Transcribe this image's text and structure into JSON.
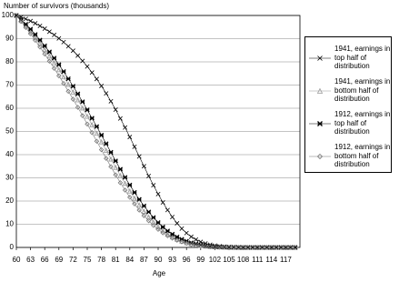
{
  "chart_data": {
    "type": "line",
    "y_label": "Number of survivors (thousands)",
    "x_label": "Age",
    "x": [
      60,
      61,
      62,
      63,
      64,
      65,
      66,
      67,
      68,
      69,
      70,
      71,
      72,
      73,
      74,
      75,
      76,
      77,
      78,
      79,
      80,
      81,
      82,
      83,
      84,
      85,
      86,
      87,
      88,
      89,
      90,
      91,
      92,
      93,
      94,
      95,
      96,
      97,
      98,
      99,
      100,
      101,
      102,
      103,
      104,
      105,
      106,
      107,
      108,
      109,
      110,
      111,
      112,
      113,
      114,
      115,
      116,
      117,
      118,
      119
    ],
    "xlim": [
      60,
      120
    ],
    "xticks": [
      60,
      63,
      66,
      69,
      72,
      75,
      78,
      81,
      84,
      87,
      90,
      93,
      96,
      99,
      102,
      105,
      108,
      111,
      114,
      117
    ],
    "ylim": [
      0,
      100
    ],
    "yticks": [
      0,
      10,
      20,
      30,
      40,
      50,
      60,
      70,
      80,
      90,
      100
    ],
    "grid": true,
    "series": [
      {
        "name": "1941, earnings in top half of distribution",
        "color": "#000000",
        "marker": "x",
        "values": [
          100,
          99.3,
          98.5,
          97.6,
          96.6,
          95.5,
          94.3,
          93,
          91.6,
          90.1,
          88.5,
          86.7,
          84.8,
          82.7,
          80.4,
          78,
          75.4,
          72.6,
          69.6,
          66.4,
          63,
          59.4,
          55.6,
          51.7,
          47.6,
          43.4,
          39.2,
          35,
          30.8,
          26.8,
          23,
          19.4,
          16.1,
          13.1,
          10.4,
          8.1,
          6.2,
          4.6,
          3.4,
          2.4,
          1.7,
          1.2,
          0.8,
          0.5,
          0.3,
          0.2,
          0.1,
          0.1,
          0,
          0,
          0,
          0,
          0,
          0,
          0,
          0,
          0,
          0,
          0,
          0
        ]
      },
      {
        "name": "1941, earnings in bottom half of distribution",
        "color": "#999999",
        "marker": "triangle",
        "values": [
          100,
          97.8,
          95.5,
          93.1,
          90.6,
          88,
          85.3,
          82.5,
          79.6,
          76.6,
          73.5,
          70.3,
          67,
          63.6,
          60.1,
          56.5,
          52.9,
          49.2,
          45.5,
          41.8,
          38.1,
          34.5,
          31,
          27.6,
          24.3,
          21.2,
          18.3,
          15.6,
          13.1,
          10.9,
          8.9,
          7.2,
          5.7,
          4.5,
          3.5,
          2.7,
          2,
          1.5,
          1.1,
          0.8,
          0.6,
          0.4,
          0.3,
          0.2,
          0.1,
          0.1,
          0,
          0,
          0,
          0,
          0,
          0,
          0,
          0,
          0,
          0,
          0,
          0,
          0,
          0
        ]
      },
      {
        "name": "1912, earnings in top half of distribution",
        "color": "#000000",
        "marker": "star",
        "values": [
          100,
          98.2,
          96.2,
          94.1,
          91.8,
          89.4,
          86.9,
          84.3,
          81.6,
          78.8,
          75.8,
          72.7,
          69.5,
          66.2,
          62.8,
          59.3,
          55.7,
          52.1,
          48.4,
          44.7,
          41,
          37.3,
          33.7,
          30.2,
          26.9,
          23.7,
          20.7,
          17.9,
          15.3,
          12.9,
          10.7,
          8.8,
          7.1,
          5.7,
          4.5,
          3.5,
          2.7,
          2,
          1.5,
          1.1,
          0.8,
          0.6,
          0.4,
          0.3,
          0.2,
          0.1,
          0.1,
          0,
          0,
          0,
          0,
          0,
          0,
          0,
          0,
          0,
          0,
          0,
          0,
          0
        ]
      },
      {
        "name": "1912, earnings in bottom half of distribution",
        "color": "#777777",
        "marker": "diamond",
        "values": [
          100,
          97.4,
          94.8,
          92.1,
          89.3,
          86.4,
          83.4,
          80.3,
          77.2,
          74,
          70.7,
          67.3,
          63.9,
          60.4,
          56.8,
          53.2,
          49.5,
          45.8,
          42.1,
          38.4,
          34.8,
          31.3,
          27.9,
          24.7,
          21.6,
          18.8,
          16.1,
          13.7,
          11.5,
          9.5,
          7.8,
          6.3,
          5,
          4,
          3.1,
          2.4,
          1.8,
          1.3,
          0.9,
          0.7,
          0.5,
          0.3,
          0.2,
          0.1,
          0.1,
          0,
          0,
          0,
          0,
          0,
          0,
          0,
          0,
          0,
          0,
          0,
          0,
          0,
          0,
          0
        ]
      }
    ]
  }
}
